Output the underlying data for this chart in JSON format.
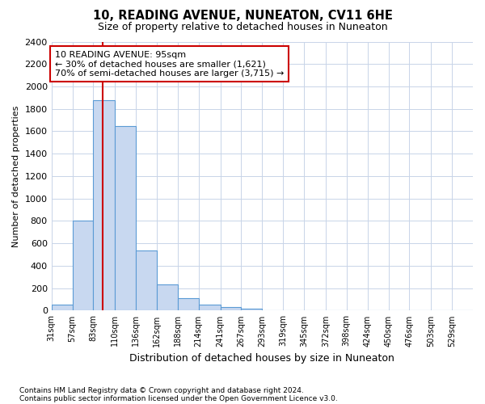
{
  "title1": "10, READING AVENUE, NUNEATON, CV11 6HE",
  "title2": "Size of property relative to detached houses in Nuneaton",
  "xlabel": "Distribution of detached houses by size in Nuneaton",
  "ylabel": "Number of detached properties",
  "footnote1": "Contains HM Land Registry data © Crown copyright and database right 2024.",
  "footnote2": "Contains public sector information licensed under the Open Government Licence v3.0.",
  "bin_edges": [
    31,
    57,
    83,
    110,
    136,
    162,
    188,
    214,
    241,
    267,
    293,
    319,
    345,
    372,
    398,
    424,
    450,
    476,
    503,
    529,
    555
  ],
  "bar_heights": [
    50,
    800,
    1880,
    1650,
    540,
    235,
    110,
    50,
    30,
    20,
    0,
    0,
    0,
    0,
    0,
    0,
    0,
    0,
    0,
    0
  ],
  "bar_facecolor": "#c8d8f0",
  "bar_edgecolor": "#5b9bd5",
  "ylim": [
    0,
    2400
  ],
  "yticks": [
    0,
    200,
    400,
    600,
    800,
    1000,
    1200,
    1400,
    1600,
    1800,
    2000,
    2200,
    2400
  ],
  "grid_color": "#c8d4e8",
  "bg_color": "#ffffff",
  "property_size": 95,
  "vline_color": "#cc0000",
  "annotation_line1": "10 READING AVENUE: 95sqm",
  "annotation_line2": "← 30% of detached houses are smaller (1,621)",
  "annotation_line3": "70% of semi-detached houses are larger (3,715) →",
  "annotation_box_color": "#ffffff",
  "annotation_box_edgecolor": "#cc0000"
}
